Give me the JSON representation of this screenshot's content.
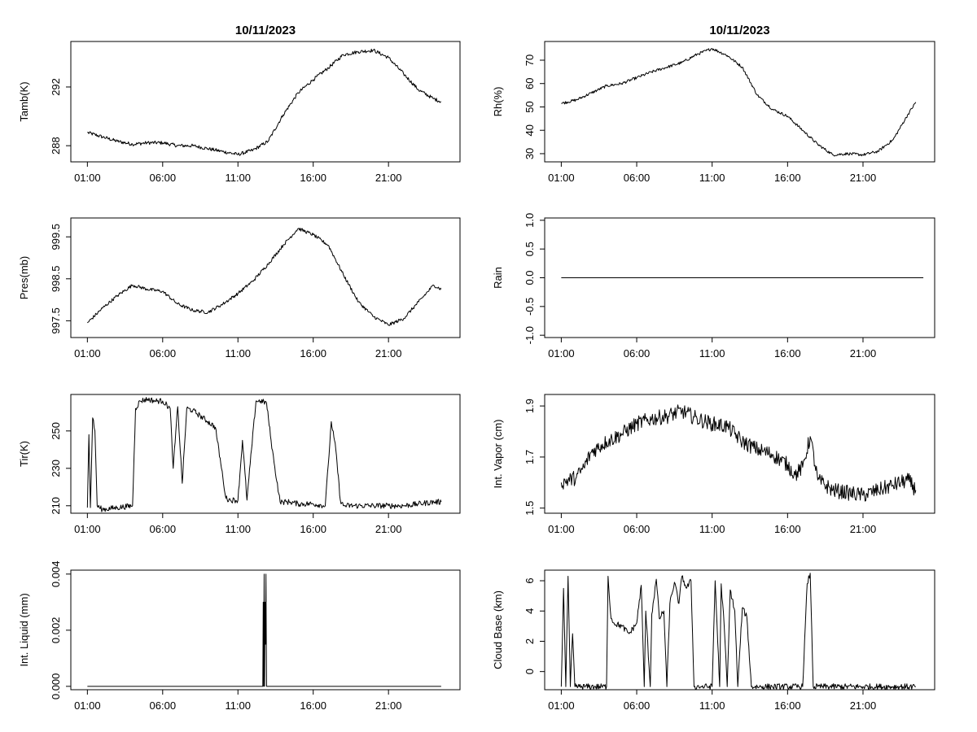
{
  "chart_data": [
    {
      "id": "tamb",
      "type": "line",
      "title": "10/11/2023",
      "xlabel": "",
      "ylabel": "Tamb(K)",
      "xticks": [
        "01:00",
        "06:00",
        "11:00",
        "16:00",
        "21:00"
      ],
      "yticks": [
        288,
        292
      ],
      "ytick_labels": [
        "288",
        "292"
      ],
      "ylim": [
        286.9,
        295.1
      ],
      "noise": 0.12,
      "series": [
        {
          "x": [
            0,
            1,
            2,
            3,
            4,
            5,
            6,
            7,
            8,
            9,
            10,
            11,
            12,
            13,
            14,
            15,
            16,
            17,
            18,
            19,
            20,
            21,
            22,
            23,
            23.5
          ],
          "y": [
            288.9,
            288.6,
            288.3,
            288.1,
            288.2,
            288.2,
            288.0,
            288.0,
            287.8,
            287.6,
            287.4,
            287.7,
            288.3,
            290.1,
            291.6,
            292.5,
            293.3,
            294.2,
            294.4,
            294.5,
            294.0,
            292.9,
            291.8,
            291.2,
            291.0
          ]
        }
      ]
    },
    {
      "id": "rh",
      "type": "line",
      "title": "10/11/2023",
      "xlabel": "",
      "ylabel": "Rh(%)",
      "xticks": [
        "01:00",
        "06:00",
        "11:00",
        "16:00",
        "21:00"
      ],
      "yticks": [
        30,
        40,
        50,
        60,
        70
      ],
      "ytick_labels": [
        "30",
        "40",
        "50",
        "60",
        "70"
      ],
      "ylim": [
        26.5,
        78
      ],
      "noise": 0.6,
      "series": [
        {
          "x": [
            0,
            1,
            2,
            3,
            4,
            5,
            6,
            7,
            8,
            9,
            10,
            11,
            12,
            13,
            14,
            15,
            16,
            17,
            18,
            19,
            20,
            21,
            22,
            23,
            23.5
          ],
          "y": [
            51.5,
            53,
            56,
            59,
            60,
            62.5,
            65,
            67,
            69,
            72.5,
            75,
            72,
            67,
            55,
            49,
            46,
            40,
            34,
            29.5,
            30,
            29.5,
            31,
            36,
            47,
            52
          ]
        }
      ]
    },
    {
      "id": "pres",
      "type": "line",
      "title": "",
      "xlabel": "",
      "ylabel": "Pres(mb)",
      "xticks": [
        "01:00",
        "06:00",
        "11:00",
        "16:00",
        "21:00"
      ],
      "yticks": [
        997.5,
        998.5,
        999.5
      ],
      "ytick_labels": [
        "997.5",
        "998.5",
        "999.5"
      ],
      "ylim": [
        997.1,
        999.95
      ],
      "noise": 0.04,
      "series": [
        {
          "x": [
            0,
            1,
            2,
            3,
            4,
            5,
            6,
            7,
            8,
            9,
            10,
            11,
            12,
            13,
            14,
            15,
            16,
            17,
            18,
            19,
            20,
            21,
            22,
            23,
            23.5
          ],
          "y": [
            997.45,
            997.8,
            998.1,
            998.35,
            998.25,
            998.2,
            997.9,
            997.75,
            997.7,
            997.9,
            998.15,
            998.45,
            998.85,
            999.3,
            999.7,
            999.55,
            999.3,
            998.6,
            997.95,
            997.6,
            997.4,
            997.55,
            997.95,
            998.35,
            998.25
          ]
        }
      ]
    },
    {
      "id": "rain",
      "type": "line",
      "title": "",
      "xlabel": "",
      "ylabel": "Rain",
      "xticks": [
        "01:00",
        "06:00",
        "11:00",
        "16:00",
        "21:00"
      ],
      "yticks": [
        -1.0,
        -0.5,
        0.0,
        0.5,
        1.0
      ],
      "ytick_labels": [
        "-1.0",
        "-0.5",
        "0.0",
        "0.5",
        "1.0"
      ],
      "ylim": [
        -1.04,
        1.04
      ],
      "noise": 0,
      "series": [
        {
          "x": [
            0,
            24
          ],
          "y": [
            0,
            0
          ]
        }
      ]
    },
    {
      "id": "tir",
      "type": "line",
      "title": "",
      "xlabel": "",
      "ylabel": "Tir(K)",
      "xticks": [
        "01:00",
        "06:00",
        "11:00",
        "16:00",
        "21:00"
      ],
      "yticks": [
        210,
        230,
        250
      ],
      "ytick_labels": [
        "210",
        "230",
        "250"
      ],
      "ylim": [
        206,
        269.5
      ],
      "noise": 1.5,
      "series": [
        {
          "x": [
            0,
            0.1,
            0.2,
            0.35,
            0.5,
            0.65,
            0.8,
            1,
            2,
            3,
            3.2,
            3.5,
            4,
            4.5,
            5,
            5.5,
            5.7,
            6,
            6.3,
            6.6,
            7,
            7.5,
            8,
            8.5,
            9,
            9.2,
            9.5,
            10,
            10.3,
            10.6,
            10.9,
            11.2,
            11.5,
            11.9,
            12.2,
            12.4,
            12.8,
            13,
            13.5,
            14,
            15,
            15.8,
            16,
            16.2,
            16.5,
            16.8,
            17,
            18,
            19,
            20,
            21,
            22,
            23,
            23.5
          ],
          "y": [
            209,
            248,
            209,
            257,
            250,
            210,
            209,
            208,
            209,
            210,
            262,
            266,
            267,
            266,
            266,
            262,
            230,
            263,
            222,
            262,
            261,
            258,
            255,
            252,
            225,
            214,
            213,
            213,
            245,
            213,
            240,
            266,
            266,
            265,
            245,
            233,
            212,
            212,
            212,
            211,
            211,
            210,
            232,
            255,
            240,
            213,
            210,
            210,
            210,
            210,
            210,
            211,
            212,
            212
          ]
        }
      ]
    },
    {
      "id": "vapor",
      "type": "line",
      "title": "",
      "xlabel": "",
      "ylabel": "Int. Vapor (cm)",
      "xticks": [
        "01:00",
        "06:00",
        "11:00",
        "16:00",
        "21:00"
      ],
      "yticks": [
        1.5,
        1.7,
        1.9
      ],
      "ytick_labels": [
        "1.5",
        "1.7",
        "1.9"
      ],
      "ylim": [
        1.48,
        1.945
      ],
      "noise": 0.03,
      "series": [
        {
          "x": [
            0,
            1,
            1.5,
            2,
            3,
            4,
            5,
            6,
            7,
            8,
            9,
            10,
            11,
            12,
            13,
            14,
            15,
            15.5,
            16,
            16.5,
            17,
            18,
            19,
            20,
            21,
            22,
            23,
            23.5
          ],
          "y": [
            1.6,
            1.62,
            1.66,
            1.72,
            1.76,
            1.79,
            1.83,
            1.85,
            1.86,
            1.88,
            1.85,
            1.83,
            1.82,
            1.76,
            1.73,
            1.71,
            1.67,
            1.63,
            1.66,
            1.78,
            1.61,
            1.57,
            1.56,
            1.55,
            1.57,
            1.59,
            1.61,
            1.57
          ]
        }
      ]
    },
    {
      "id": "liquid",
      "type": "line",
      "title": "",
      "xlabel": "",
      "ylabel": "Int. Liquid (mm)",
      "xticks": [
        "01:00",
        "06:00",
        "11:00",
        "16:00",
        "21:00"
      ],
      "yticks": [
        0.0,
        0.002,
        0.004
      ],
      "ytick_labels": [
        "0.000",
        "0.002",
        "0.004"
      ],
      "ylim": [
        -0.00012,
        0.00414
      ],
      "noise": 0,
      "series": [
        {
          "x": [
            0,
            11.65,
            11.68,
            11.71,
            11.74,
            11.77,
            11.8,
            11.83,
            11.86,
            11.9,
            23.5
          ],
          "y": [
            0,
            0,
            0.003,
            0,
            0.004,
            0,
            0.003,
            0.0015,
            0.004,
            0,
            0
          ]
        }
      ]
    },
    {
      "id": "cloudbase",
      "type": "line",
      "title": "",
      "xlabel": "",
      "ylabel": "Cloud Base (km)",
      "xticks": [
        "01:00",
        "06:00",
        "11:00",
        "16:00",
        "21:00"
      ],
      "yticks": [
        0,
        2,
        4,
        6
      ],
      "ytick_labels": [
        "0",
        "2",
        "4",
        "6"
      ],
      "ylim": [
        -1.2,
        6.7
      ],
      "noise": 0.2,
      "series": [
        {
          "x": [
            0,
            0.15,
            0.3,
            0.45,
            0.6,
            0.75,
            0.9,
            1.2,
            2,
            3,
            3.1,
            3.3,
            3.5,
            4,
            4.5,
            5,
            5.3,
            5.5,
            5.6,
            5.9,
            6,
            6.3,
            6.5,
            6.8,
            7,
            7.2,
            7.5,
            7.8,
            8,
            8.3,
            8.6,
            8.8,
            9,
            9.5,
            10,
            10.2,
            10.5,
            10.6,
            10.8,
            11,
            11.2,
            11.5,
            11.7,
            12,
            12.3,
            12.6,
            13,
            14,
            15,
            16,
            16.3,
            16.5,
            16.7,
            17,
            18,
            20,
            22,
            23.5
          ],
          "y": [
            -1,
            5.5,
            -1,
            6.3,
            -1,
            2.5,
            -1,
            -1,
            -1,
            -1,
            6.3,
            3.5,
            3.2,
            3.0,
            2.5,
            3.2,
            5.7,
            -1,
            4.0,
            -1,
            3.8,
            6.1,
            3.5,
            4.0,
            -1,
            4.5,
            5.9,
            4.5,
            6.3,
            5.5,
            6.0,
            -1,
            -1,
            -1,
            -1,
            6.0,
            -1,
            5.8,
            3.0,
            -1,
            5.4,
            4.0,
            -1,
            4.2,
            3.6,
            -1,
            -1,
            -1,
            -1,
            -1,
            5.8,
            6.5,
            -1,
            -1,
            -1,
            -1,
            -1,
            -1
          ]
        }
      ]
    }
  ]
}
